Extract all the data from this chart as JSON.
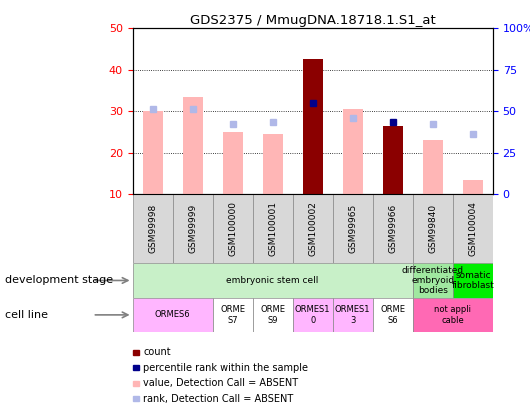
{
  "title": "GDS2375 / MmugDNA.18718.1.S1_at",
  "samples": [
    "GSM99998",
    "GSM99999",
    "GSM100000",
    "GSM100001",
    "GSM100002",
    "GSM99965",
    "GSM99966",
    "GSM99840",
    "GSM100004"
  ],
  "count_values": [
    null,
    null,
    null,
    null,
    42.5,
    null,
    26.5,
    null,
    null
  ],
  "count_absent": [
    30.0,
    33.5,
    25.0,
    24.5,
    null,
    30.5,
    null,
    23.0,
    13.5
  ],
  "rank_present": [
    null,
    null,
    null,
    null,
    32.0,
    null,
    27.5,
    null,
    null
  ],
  "rank_absent": [
    30.5,
    30.5,
    27.0,
    27.5,
    null,
    28.5,
    null,
    27.0,
    24.5
  ],
  "ylim_left": [
    10,
    50
  ],
  "ylim_right": [
    0,
    100
  ],
  "yticks_left": [
    10,
    20,
    30,
    40,
    50
  ],
  "yticks_right": [
    0,
    25,
    50,
    75,
    100
  ],
  "color_count": "#8B0000",
  "color_count_absent": "#FFB6B6",
  "color_rank_present": "#00008B",
  "color_rank_absent": "#B0B8E8",
  "bar_width": 0.5,
  "marker_size": 5,
  "dev_groups": [
    {
      "label": "embryonic stem cell",
      "start": 0,
      "end": 6,
      "color": "#C8F0C8"
    },
    {
      "label": "differentiated\nembryoid\nbodies",
      "start": 7,
      "end": 7,
      "color": "#A0E8A0"
    },
    {
      "label": "somatic\nfibroblast",
      "start": 8,
      "end": 8,
      "color": "#00EE00"
    }
  ],
  "cell_groups": [
    {
      "label": "ORMES6",
      "start": 0,
      "end": 1,
      "color": "#FFB6FF"
    },
    {
      "label": "ORME\nS7",
      "start": 2,
      "end": 2,
      "color": "white"
    },
    {
      "label": "ORME\nS9",
      "start": 3,
      "end": 3,
      "color": "white"
    },
    {
      "label": "ORMES1\n0",
      "start": 4,
      "end": 4,
      "color": "#FFB6FF"
    },
    {
      "label": "ORMES1\n3",
      "start": 5,
      "end": 5,
      "color": "#FFB6FF"
    },
    {
      "label": "ORME\nS6",
      "start": 6,
      "end": 6,
      "color": "white"
    },
    {
      "label": "not appli\ncable",
      "start": 7,
      "end": 8,
      "color": "#FF69B4"
    }
  ],
  "legend_items": [
    {
      "label": "count",
      "color": "#8B0000"
    },
    {
      "label": "percentile rank within the sample",
      "color": "#00008B"
    },
    {
      "label": "value, Detection Call = ABSENT",
      "color": "#FFB6B6"
    },
    {
      "label": "rank, Detection Call = ABSENT",
      "color": "#B0B8E8"
    }
  ]
}
